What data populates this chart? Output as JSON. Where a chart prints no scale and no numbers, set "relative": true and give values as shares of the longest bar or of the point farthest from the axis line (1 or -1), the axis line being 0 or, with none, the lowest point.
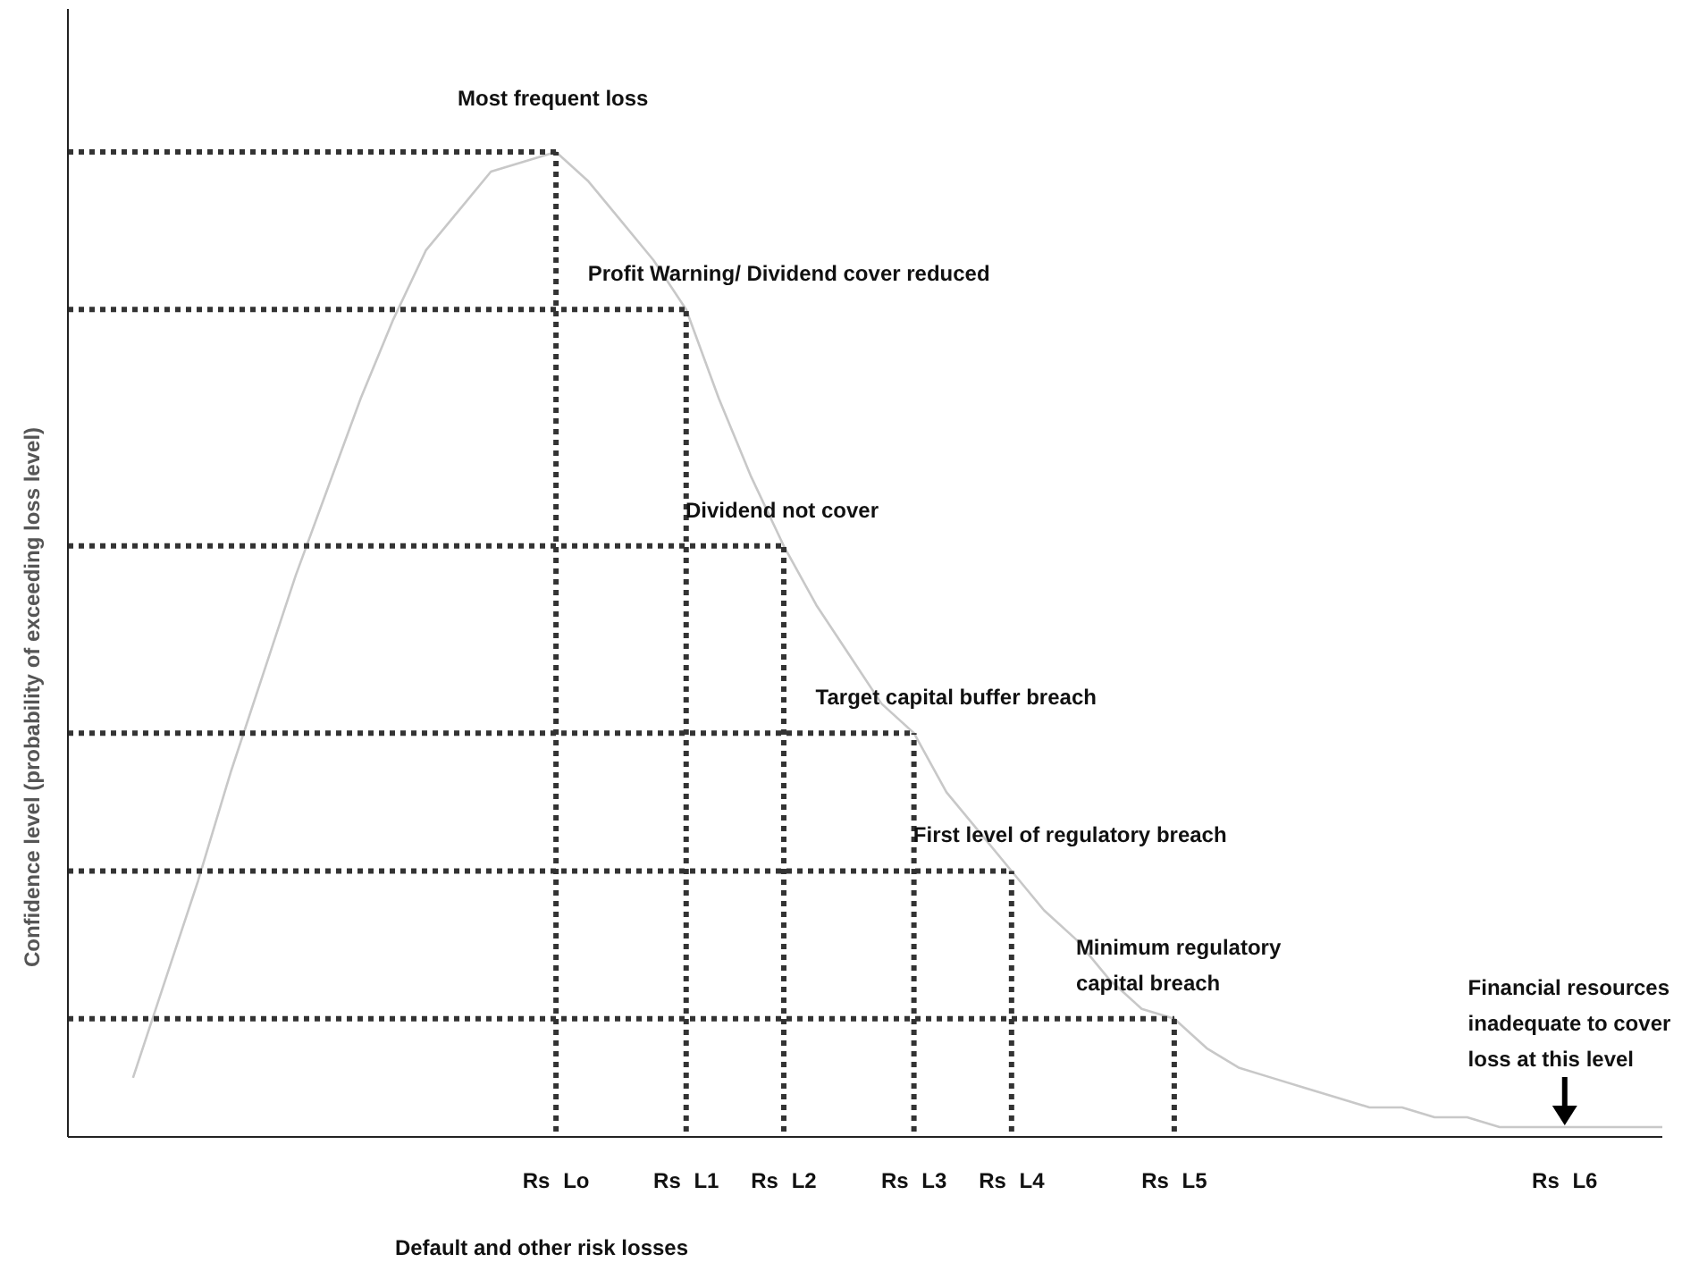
{
  "chart_data": {
    "type": "line",
    "relative": true,
    "xlabel": "Default and other risk losses",
    "ylabel": "Confidence level (probability of exceeding loss level)",
    "categories": [
      null,
      null,
      null,
      null,
      null,
      null,
      null,
      null,
      null,
      null,
      null,
      null,
      null,
      null,
      null,
      "Rs Lo",
      null,
      null,
      null,
      "Rs L1",
      null,
      null,
      "Rs L2",
      null,
      null,
      null,
      "Rs L3",
      null,
      null,
      "Rs L4",
      null,
      null,
      null,
      null,
      "Rs L5",
      null,
      null,
      null,
      null,
      null,
      null,
      null,
      null,
      null,
      null,
      null,
      "Rs L6",
      null,
      null,
      null
    ],
    "grid": false,
    "marker": "none",
    "series": [
      {
        "color": "#c8c8c8",
        "line_style": "solid",
        "values": [
          null,
          null,
          0.06,
          0.16,
          0.26,
          0.37,
          0.47,
          0.57,
          0.66,
          0.75,
          0.83,
          0.9,
          0.94,
          0.98,
          0.99,
          1.0,
          0.97,
          0.93,
          0.89,
          0.84,
          0.75,
          0.67,
          0.6,
          0.54,
          0.49,
          0.44,
          0.41,
          0.35,
          0.31,
          0.27,
          0.23,
          0.2,
          0.16,
          0.13,
          0.12,
          0.09,
          0.07,
          0.06,
          0.05,
          0.04,
          0.03,
          0.03,
          0.02,
          0.02,
          0.01,
          0.01,
          0.01,
          0.01,
          0.01,
          0.01
        ]
      },
      {
        "type": "bar",
        "color": "#333333",
        "values": [
          null,
          null,
          null,
          null,
          null,
          null,
          null,
          null,
          null,
          null,
          null,
          null,
          null,
          null,
          null,
          1.0,
          null,
          null,
          null,
          0.84,
          null,
          null,
          0.6,
          null,
          null,
          null,
          0.41,
          null,
          null,
          0.27,
          null,
          null,
          null,
          null,
          0.12,
          null,
          null,
          null,
          null,
          null,
          null,
          null,
          null,
          null,
          null,
          null,
          null,
          null,
          null,
          null
        ]
      },
      {
        "color": "#333333",
        "line_style": "dotted",
        "values": [
          1.0,
          1.0,
          1.0,
          1.0,
          1.0,
          1.0,
          1.0,
          1.0,
          1.0,
          1.0,
          1.0,
          1.0,
          1.0,
          1.0,
          1.0,
          1.0,
          null,
          null,
          null,
          null,
          null,
          null,
          null,
          null,
          null,
          null,
          null,
          null,
          null,
          null,
          null,
          null,
          null,
          null,
          null,
          null,
          null,
          null,
          null,
          null,
          null,
          null,
          null,
          null,
          null,
          null,
          null,
          null,
          null,
          null
        ]
      },
      {
        "color": "#333333",
        "line_style": "dotted",
        "values": [
          0.84,
          0.84,
          0.84,
          0.84,
          0.84,
          0.84,
          0.84,
          0.84,
          0.84,
          0.84,
          0.84,
          0.84,
          0.84,
          0.84,
          0.84,
          0.84,
          0.84,
          0.84,
          0.84,
          0.84,
          null,
          null,
          null,
          null,
          null,
          null,
          null,
          null,
          null,
          null,
          null,
          null,
          null,
          null,
          null,
          null,
          null,
          null,
          null,
          null,
          null,
          null,
          null,
          null,
          null,
          null,
          null,
          null,
          null,
          null
        ]
      },
      {
        "color": "#333333",
        "line_style": "dotted",
        "values": [
          0.6,
          0.6,
          0.6,
          0.6,
          0.6,
          0.6,
          0.6,
          0.6,
          0.6,
          0.6,
          0.6,
          0.6,
          0.6,
          0.6,
          0.6,
          0.6,
          0.6,
          0.6,
          0.6,
          0.6,
          0.6,
          0.6,
          0.6,
          null,
          null,
          null,
          null,
          null,
          null,
          null,
          null,
          null,
          null,
          null,
          null,
          null,
          null,
          null,
          null,
          null,
          null,
          null,
          null,
          null,
          null,
          null,
          null,
          null,
          null,
          null
        ]
      },
      {
        "color": "#333333",
        "line_style": "dotted",
        "values": [
          0.41,
          0.41,
          0.41,
          0.41,
          0.41,
          0.41,
          0.41,
          0.41,
          0.41,
          0.41,
          0.41,
          0.41,
          0.41,
          0.41,
          0.41,
          0.41,
          0.41,
          0.41,
          0.41,
          0.41,
          0.41,
          0.41,
          0.41,
          0.41,
          0.41,
          0.41,
          0.41,
          null,
          null,
          null,
          null,
          null,
          null,
          null,
          null,
          null,
          null,
          null,
          null,
          null,
          null,
          null,
          null,
          null,
          null,
          null,
          null,
          null,
          null,
          null
        ]
      },
      {
        "color": "#333333",
        "line_style": "dotted",
        "values": [
          0.27,
          0.27,
          0.27,
          0.27,
          0.27,
          0.27,
          0.27,
          0.27,
          0.27,
          0.27,
          0.27,
          0.27,
          0.27,
          0.27,
          0.27,
          0.27,
          0.27,
          0.27,
          0.27,
          0.27,
          0.27,
          0.27,
          0.27,
          0.27,
          0.27,
          0.27,
          0.27,
          0.27,
          0.27,
          0.27,
          null,
          null,
          null,
          null,
          null,
          null,
          null,
          null,
          null,
          null,
          null,
          null,
          null,
          null,
          null,
          null,
          null,
          null,
          null,
          null
        ]
      },
      {
        "color": "#333333",
        "line_style": "dotted",
        "values": [
          0.12,
          0.12,
          0.12,
          0.12,
          0.12,
          0.12,
          0.12,
          0.12,
          0.12,
          0.12,
          0.12,
          0.12,
          0.12,
          0.12,
          0.12,
          0.12,
          0.12,
          0.12,
          0.12,
          0.12,
          0.12,
          0.12,
          0.12,
          0.12,
          0.12,
          0.12,
          0.12,
          0.12,
          0.12,
          0.12,
          0.12,
          0.12,
          0.12,
          0.12,
          0.12,
          null,
          null,
          null,
          null,
          null,
          null,
          null,
          null,
          null,
          null,
          null,
          null,
          null,
          null,
          null
        ]
      }
    ],
    "annotations": [
      {
        "text": "Most frequent loss",
        "x": "Rs Lo",
        "y": 1.0
      },
      {
        "text": "Profit Warning/ Dividend cover reduced",
        "x": "Rs L1",
        "y": 0.84
      },
      {
        "text": "Dividend not cover",
        "x": "Rs L2",
        "y": 0.6
      },
      {
        "text": "Target capital buffer breach",
        "x": "Rs L3",
        "y": 0.41
      },
      {
        "text": "First level of regulatory breach",
        "x": "Rs L4",
        "y": 0.27
      },
      {
        "text": "Minimum regulatory\ncapital breach",
        "x": "Rs L5",
        "y": 0.12
      },
      {
        "text": "Financial resources\ninadequate to cover\nloss at this level",
        "x": "Rs L6",
        "y": 0.01
      }
    ]
  }
}
